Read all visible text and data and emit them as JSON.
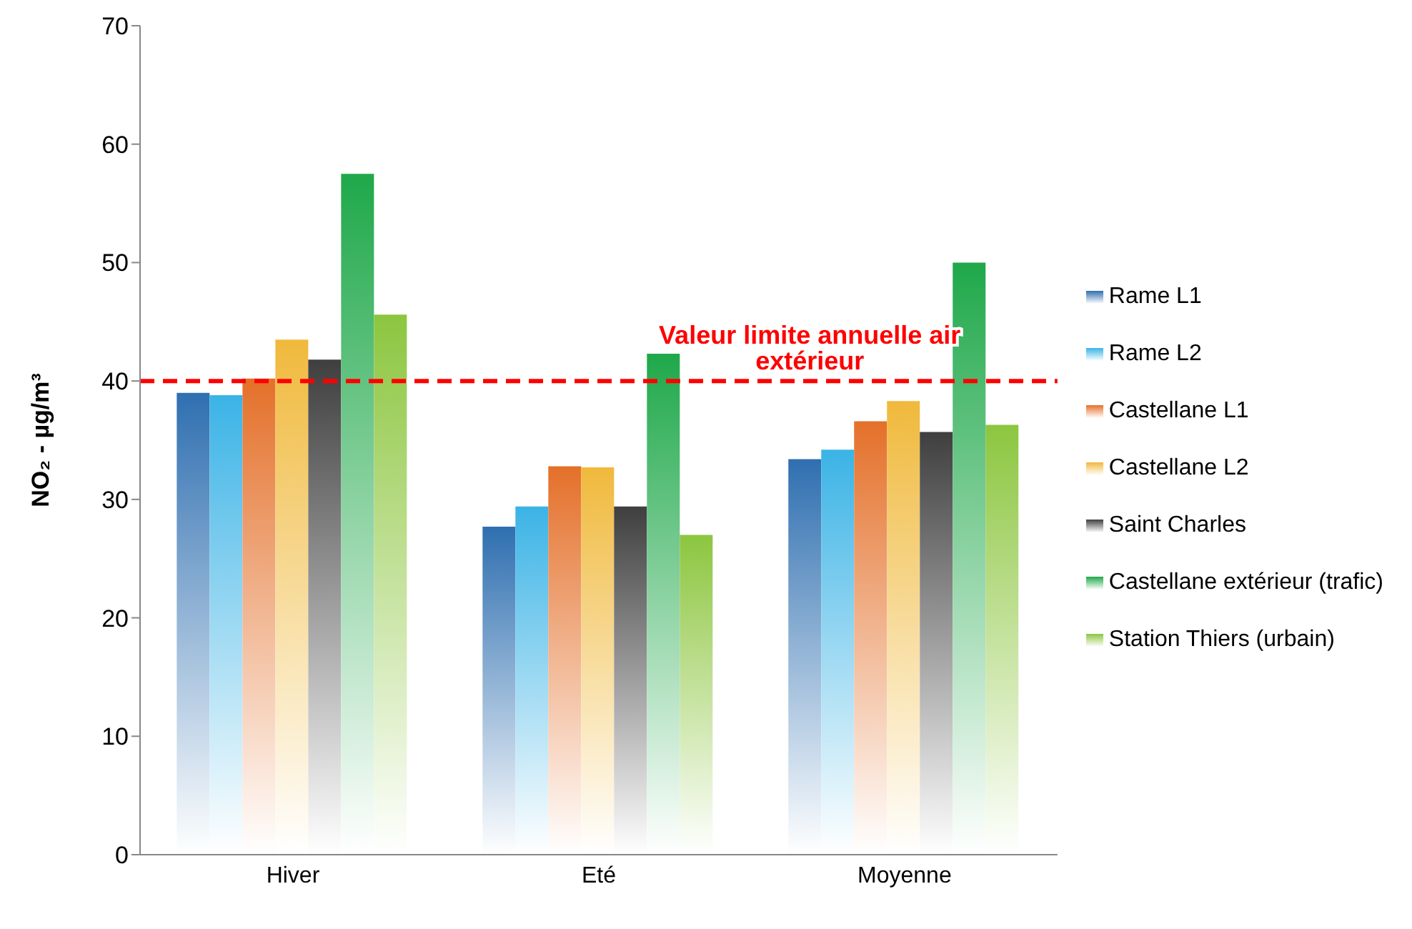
{
  "chart_data": {
    "type": "bar",
    "ylabel": "NO₂ - µg/m³",
    "categories": [
      "Hiver",
      "Eté",
      "Moyenne"
    ],
    "series": [
      {
        "name": "Rame L1",
        "color": "#2f6fb0",
        "values": [
          39.0,
          27.7,
          33.4
        ]
      },
      {
        "name": "Rame L2",
        "color": "#3bb3e6",
        "values": [
          38.8,
          29.4,
          34.2
        ]
      },
      {
        "name": "Castellane L1",
        "color": "#e4702a",
        "values": [
          40.2,
          32.8,
          36.6
        ]
      },
      {
        "name": "Castellane L2",
        "color": "#f0b93c",
        "values": [
          43.5,
          32.7,
          38.3
        ]
      },
      {
        "name": "Saint Charles",
        "color": "#3f3f3f",
        "values": [
          41.8,
          29.4,
          35.7
        ]
      },
      {
        "name": "Castellane extérieur (trafic)",
        "color": "#1fa84a",
        "values": [
          57.5,
          42.3,
          50.0
        ]
      },
      {
        "name": "Station Thiers (urbain)",
        "color": "#8cc63f",
        "values": [
          45.6,
          27.0,
          36.3
        ]
      }
    ],
    "ylim": [
      0,
      70
    ],
    "yticks": [
      0,
      10,
      20,
      30,
      40,
      50,
      60,
      70
    ],
    "grid": false,
    "legend": "right",
    "ref_lines": [
      {
        "axis": "y",
        "value": 40,
        "label": "Valeur limite annuelle air extérieur",
        "color": "#ff0000",
        "line_style": "dashed"
      }
    ]
  }
}
